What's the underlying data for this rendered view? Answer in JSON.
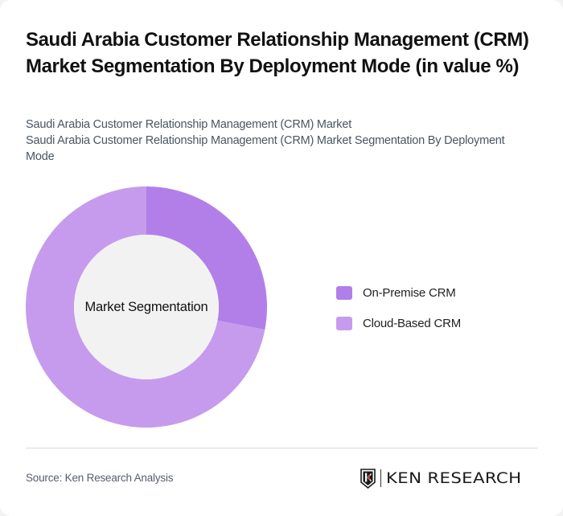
{
  "header": {
    "title": "Saudi Arabia Customer Relationship Management (CRM) Market Segmentation By Deployment Mode (in value %)",
    "subtitle_lines": [
      "Saudi Arabia Customer Relationship Management (CRM) Market",
      "Saudi Arabia Customer Relationship Management (CRM) Market Segmentation By Deployment Mode"
    ]
  },
  "chart": {
    "center_label": "Market Segmentation"
  },
  "legend": [
    {
      "label": "On-Premise CRM",
      "color": "#b27fe9"
    },
    {
      "label": "Cloud-Based CRM",
      "color": "#c69bed"
    }
  ],
  "footer": {
    "source": "Source: Ken Research Analysis",
    "logo_text": "KEN RESEARCH",
    "logo_accent_color": "#d32f2f"
  },
  "colors": {
    "center_fill": "#f2f2f2",
    "title": "#111111",
    "subtitle": "#4b5563"
  },
  "chart_data": {
    "type": "pie",
    "variant": "donut",
    "title": "Saudi Arabia Customer Relationship Management (CRM) Market Segmentation By Deployment Mode (in value %)",
    "center_label": "Market Segmentation",
    "categories": [
      "On-Premise CRM",
      "Cloud-Based CRM"
    ],
    "values": [
      28,
      72
    ],
    "colors": [
      "#b27fe9",
      "#c69bed"
    ],
    "unit": "%",
    "start_angle": "12 o'clock, clockwise",
    "legend_position": "right",
    "data_labels": false
  }
}
